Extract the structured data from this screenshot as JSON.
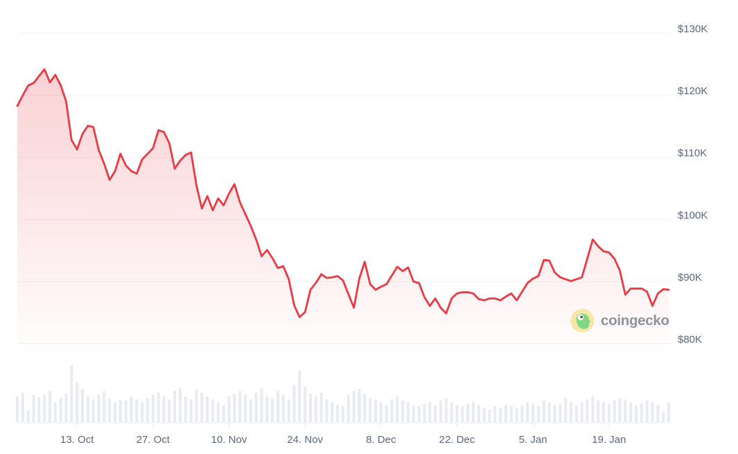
{
  "watermark": {
    "text": "coingecko"
  },
  "colors": {
    "line": "#ea3943",
    "fill_top": "rgba(234,57,67,0.26)",
    "fill_bottom": "rgba(234,57,67,0.015)",
    "volume_bar": "#e8ebf1",
    "gridline": "#f0f2f5",
    "base_gridline": "#e4ebf3",
    "axis_line": "#e6e8ec",
    "axis_label": "#5b6780",
    "watermark_text": "#8f9298",
    "gecko_circle": "#f6e7a9",
    "gecko_body": "#82d784"
  },
  "chart_data": {
    "type": "line",
    "title": "",
    "xlabel": "",
    "ylabel": "",
    "legend": "none",
    "grid": "horizontal-only",
    "y_axis_side": "right",
    "ylim_k_usd": [
      80,
      130
    ],
    "y_ticks": [
      {
        "value": 130,
        "label": "$130K"
      },
      {
        "value": 120,
        "label": "$120K"
      },
      {
        "value": 110,
        "label": "$110K"
      },
      {
        "value": 100,
        "label": "$100K"
      },
      {
        "value": 90,
        "label": "$90K"
      },
      {
        "value": 80,
        "label": "$80K"
      }
    ],
    "x_ticks": [
      {
        "day": 11,
        "label": "13. Oct"
      },
      {
        "day": 25,
        "label": "27. Oct"
      },
      {
        "day": 39,
        "label": "10. Nov"
      },
      {
        "day": 53,
        "label": "24. Nov"
      },
      {
        "day": 67,
        "label": "8. Dec"
      },
      {
        "day": 81,
        "label": "22. Dec"
      },
      {
        "day": 95,
        "label": "5. Jan"
      },
      {
        "day": 109,
        "label": "19. Jan"
      }
    ],
    "series": [
      {
        "name": "price_usd_thousands",
        "values": [
          118.3,
          120.0,
          121.6,
          122.0,
          123.1,
          124.2,
          122.1,
          123.3,
          121.6,
          119.0,
          112.8,
          111.3,
          113.8,
          115.1,
          114.9,
          111.2,
          109.0,
          106.4,
          107.8,
          110.6,
          108.7,
          107.8,
          107.4,
          109.7,
          110.6,
          111.5,
          114.4,
          114.1,
          112.3,
          108.2,
          109.5,
          110.4,
          110.8,
          105.5,
          101.8,
          103.8,
          101.5,
          103.4,
          102.3,
          104.2,
          105.7,
          102.8,
          100.9,
          99.0,
          96.8,
          94.1,
          95.1,
          93.8,
          92.2,
          92.5,
          90.4,
          86.2,
          84.3,
          85.1,
          88.7,
          89.8,
          91.2,
          90.6,
          90.7,
          90.9,
          90.2,
          88.0,
          85.8,
          90.5,
          93.2,
          89.6,
          88.7,
          89.2,
          89.6,
          91.0,
          92.4,
          91.7,
          92.3,
          90.0,
          89.8,
          87.5,
          86.1,
          87.3,
          85.8,
          84.9,
          87.3,
          88.1,
          88.3,
          88.3,
          88.1,
          87.2,
          87.0,
          87.3,
          87.3,
          87.0,
          87.6,
          88.1,
          87.0,
          88.4,
          89.8,
          90.5,
          90.9,
          93.5,
          93.4,
          91.5,
          90.7,
          90.4,
          90.1,
          90.4,
          90.7,
          93.7,
          96.8,
          95.7,
          94.9,
          94.7,
          93.7,
          91.8,
          87.9,
          88.9,
          88.9,
          88.9,
          88.4,
          86.1,
          88.1,
          88.8,
          88.7
        ]
      },
      {
        "name": "volume_relative_pct",
        "values": [
          45,
          52,
          20,
          48,
          44,
          48,
          55,
          35,
          42,
          50,
          100,
          70,
          58,
          45,
          40,
          48,
          55,
          42,
          35,
          40,
          38,
          45,
          40,
          35,
          42,
          48,
          52,
          45,
          40,
          55,
          60,
          45,
          40,
          58,
          52,
          45,
          40,
          35,
          30,
          45,
          50,
          55,
          48,
          40,
          52,
          60,
          45,
          42,
          55,
          48,
          40,
          65,
          90,
          62,
          50,
          45,
          52,
          40,
          35,
          30,
          28,
          48,
          55,
          58,
          50,
          42,
          38,
          35,
          30,
          40,
          45,
          38,
          35,
          30,
          28,
          32,
          35,
          30,
          38,
          42,
          35,
          30,
          28,
          32,
          35,
          30,
          25,
          22,
          28,
          25,
          30,
          28,
          25,
          30,
          35,
          32,
          28,
          38,
          35,
          30,
          32,
          42,
          35,
          30,
          35,
          40,
          45,
          38,
          35,
          32,
          38,
          42,
          40,
          35,
          30,
          32,
          38,
          35,
          30,
          18,
          35
        ]
      }
    ]
  }
}
